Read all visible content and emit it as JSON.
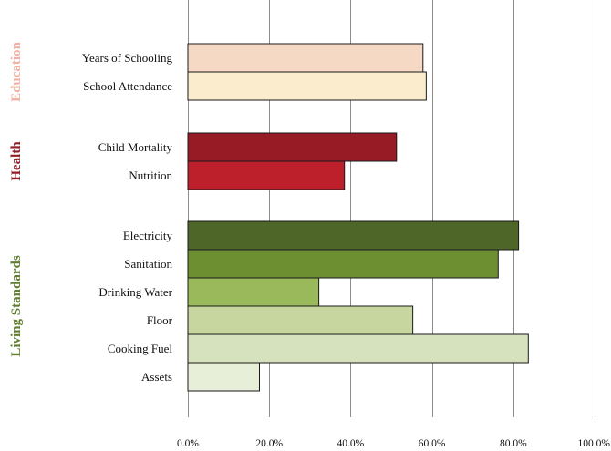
{
  "chart_data": {
    "type": "bar",
    "orientation": "horizontal",
    "title": "",
    "xlabel": "",
    "ylabel": "",
    "xlim": [
      0,
      100
    ],
    "x_ticks": [
      "0.0%",
      "20.0%",
      "40.0%",
      "60.0%",
      "80.0%",
      "100.0%"
    ],
    "grid": "vertical",
    "legend": "none",
    "groups": [
      {
        "name": "Education",
        "color": "#f0b3a3",
        "bars": [
          {
            "label": "Years of Schooling",
            "value": 57.8,
            "color": "#f6d9c5"
          },
          {
            "label": "School Attendance",
            "value": 58.6,
            "color": "#fbeccd"
          }
        ]
      },
      {
        "name": "Health",
        "color": "#8f1d25",
        "bars": [
          {
            "label": "Child Mortality",
            "value": 51.3,
            "color": "#971b25"
          },
          {
            "label": "Nutrition",
            "value": 38.5,
            "color": "#bd1f2b"
          }
        ]
      },
      {
        "name": "Living Standards",
        "color": "#5f7e2f",
        "bars": [
          {
            "label": "Electricity",
            "value": 81.3,
            "color": "#4f6629"
          },
          {
            "label": "Sanitation",
            "value": 76.3,
            "color": "#6d8f32"
          },
          {
            "label": "Drinking Water",
            "value": 32.2,
            "color": "#99b95a"
          },
          {
            "label": "Floor",
            "value": 55.3,
            "color": "#c6d69e"
          },
          {
            "label": "Cooking Fuel",
            "value": 83.7,
            "color": "#d6e2bd"
          },
          {
            "label": "Assets",
            "value": 17.6,
            "color": "#e8efd9"
          }
        ]
      }
    ]
  }
}
